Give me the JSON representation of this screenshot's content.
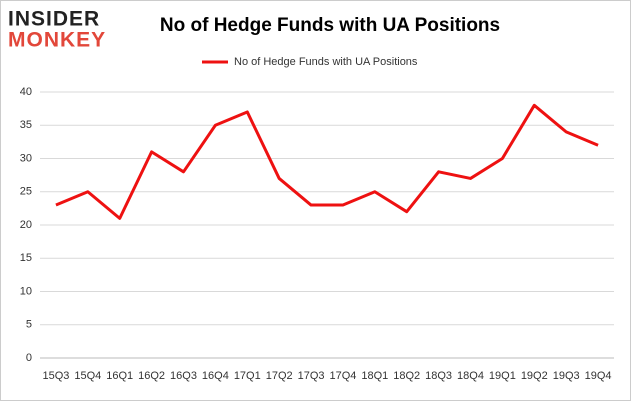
{
  "logo": {
    "top": "INSIDER",
    "bottom": "MONKEY"
  },
  "chart_data": {
    "type": "line",
    "title": "No of Hedge Funds with UA Positions",
    "categories": [
      "15Q3",
      "15Q4",
      "16Q1",
      "16Q2",
      "16Q3",
      "16Q4",
      "17Q1",
      "17Q2",
      "17Q3",
      "17Q4",
      "18Q1",
      "18Q2",
      "18Q3",
      "18Q4",
      "19Q1",
      "19Q2",
      "19Q3",
      "19Q4"
    ],
    "series": [
      {
        "name": "No of Hedge Funds with UA Positions",
        "color": "#ee1111",
        "values": [
          23,
          25,
          21,
          31,
          28,
          35,
          37,
          27,
          23,
          23,
          25,
          22,
          28,
          27,
          30,
          38,
          34,
          32
        ]
      }
    ],
    "ylim": [
      0,
      40
    ],
    "yticks": [
      0,
      5,
      10,
      15,
      20,
      25,
      30,
      35,
      40
    ],
    "grid": true,
    "legend": "top"
  }
}
